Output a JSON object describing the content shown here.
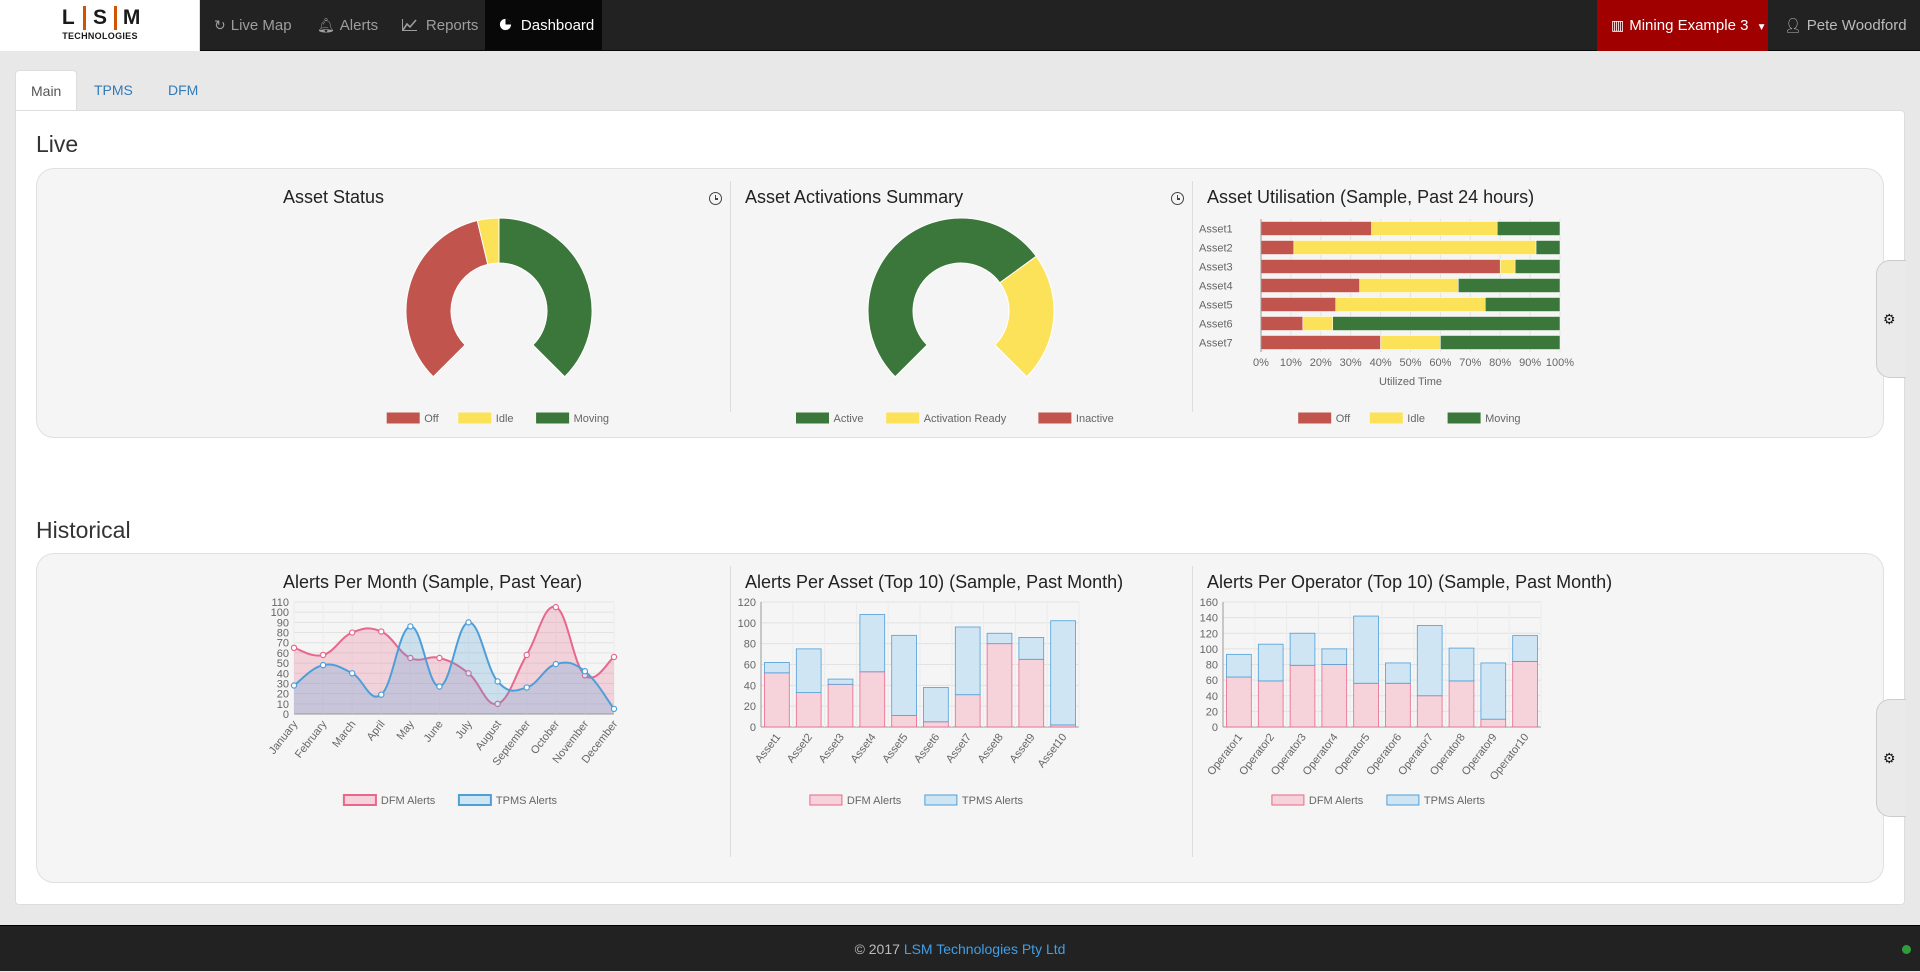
{
  "brand": {
    "letters": [
      "L",
      "S",
      "M"
    ],
    "sub": "TECHNOLOGIES"
  },
  "nav": {
    "live_map": "Live Map",
    "alerts": "Alerts",
    "reports": "Reports",
    "dashboard": "Dashboard",
    "site": "Mining Example 3",
    "user": "Pete Woodford",
    "icons": {
      "live_map": "refresh-icon",
      "alerts": "bell-icon",
      "reports": "line-chart-icon",
      "dashboard": "pie-chart-icon",
      "site": "building-icon",
      "user": "user-icon"
    }
  },
  "tabs": [
    "Main",
    "TPMS",
    "DFM"
  ],
  "sections": {
    "live": "Live",
    "historical": "Historical"
  },
  "colors": {
    "off": "#c1554d",
    "idle": "#fce258",
    "moving": "#3b763b",
    "dfm": "#e8678c",
    "dfm_fill": "#f6d2da",
    "tpms": "#4e9fd8",
    "tpms_fill": "#cfe5f3",
    "active_nav": "#080808",
    "site": "#a00000"
  },
  "chart_data": [
    {
      "id": "asset_status",
      "type": "pie",
      "title": "Asset Status",
      "labels": [
        "Off",
        "Idle",
        "Moving"
      ],
      "values": [
        45,
        5,
        50
      ]
    },
    {
      "id": "asset_activations",
      "type": "pie",
      "title": "Asset Activations Summary",
      "labels": [
        "Active",
        "Activation Ready",
        "Inactive"
      ],
      "values": [
        70,
        30,
        0
      ]
    },
    {
      "id": "asset_utilisation",
      "type": "bar",
      "orientation": "horizontal",
      "stacked": true,
      "title": "Asset Utilisation (Sample, Past 24 hours)",
      "xlabel": "Utilized Time",
      "xticks": [
        "0%",
        "10%",
        "20%",
        "30%",
        "40%",
        "50%",
        "60%",
        "70%",
        "80%",
        "90%",
        "100%"
      ],
      "categories": [
        "Asset1",
        "Asset2",
        "Asset3",
        "Asset4",
        "Asset5",
        "Asset6",
        "Asset7"
      ],
      "series": [
        {
          "name": "Off",
          "values": [
            37,
            11,
            80,
            33,
            25,
            14,
            40
          ]
        },
        {
          "name": "Idle",
          "values": [
            42,
            81,
            5,
            33,
            50,
            10,
            20
          ]
        },
        {
          "name": "Moving",
          "values": [
            21,
            8,
            15,
            34,
            25,
            76,
            40
          ]
        }
      ]
    },
    {
      "id": "alerts_per_month",
      "type": "area",
      "title": "Alerts Per Month (Sample, Past Year)",
      "categories": [
        "January",
        "February",
        "March",
        "April",
        "May",
        "June",
        "July",
        "August",
        "September",
        "October",
        "November",
        "December"
      ],
      "yticks": [
        0,
        10,
        20,
        30,
        40,
        50,
        60,
        70,
        80,
        90,
        100,
        110
      ],
      "ylim": [
        0,
        110
      ],
      "series": [
        {
          "name": "DFM Alerts",
          "values": [
            65,
            58,
            80,
            81,
            55,
            55,
            40,
            10,
            58,
            105,
            38,
            56
          ]
        },
        {
          "name": "TPMS Alerts",
          "values": [
            28,
            48,
            40,
            19,
            86,
            27,
            90,
            32,
            26,
            49,
            42,
            5
          ]
        }
      ]
    },
    {
      "id": "alerts_per_asset",
      "type": "bar",
      "stacked": true,
      "title": "Alerts Per Asset (Top 10) (Sample, Past Month)",
      "categories": [
        "Asset1",
        "Asset2",
        "Asset3",
        "Asset4",
        "Asset5",
        "Asset6",
        "Asset7",
        "Asset8",
        "Asset9",
        "Asset10"
      ],
      "yticks": [
        0,
        20,
        40,
        60,
        80,
        100,
        120
      ],
      "ylim": [
        0,
        120
      ],
      "series": [
        {
          "name": "DFM Alerts",
          "values": [
            52,
            33,
            41,
            53,
            11,
            5,
            31,
            80,
            65,
            2
          ]
        },
        {
          "name": "TPMS Alerts",
          "values": [
            10,
            42,
            5,
            55,
            77,
            33,
            65,
            10,
            21,
            100
          ]
        }
      ]
    },
    {
      "id": "alerts_per_operator",
      "type": "bar",
      "stacked": true,
      "title": "Alerts Per Operator (Top 10) (Sample, Past Month)",
      "categories": [
        "Operator1",
        "Operator2",
        "Operator3",
        "Operator4",
        "Operator5",
        "Operator6",
        "Operator7",
        "Operator8",
        "Operator9",
        "Operator10"
      ],
      "yticks": [
        0,
        20,
        40,
        60,
        80,
        100,
        120,
        140,
        160
      ],
      "ylim": [
        0,
        160
      ],
      "series": [
        {
          "name": "DFM Alerts",
          "values": [
            64,
            59,
            79,
            80,
            56,
            56,
            40,
            59,
            10,
            84
          ]
        },
        {
          "name": "TPMS Alerts",
          "values": [
            29,
            47,
            41,
            20,
            86,
            26,
            90,
            42,
            72,
            33
          ]
        }
      ]
    }
  ],
  "footer": {
    "copy": "© 2017",
    "company": "LSM Technologies Pty Ltd"
  }
}
